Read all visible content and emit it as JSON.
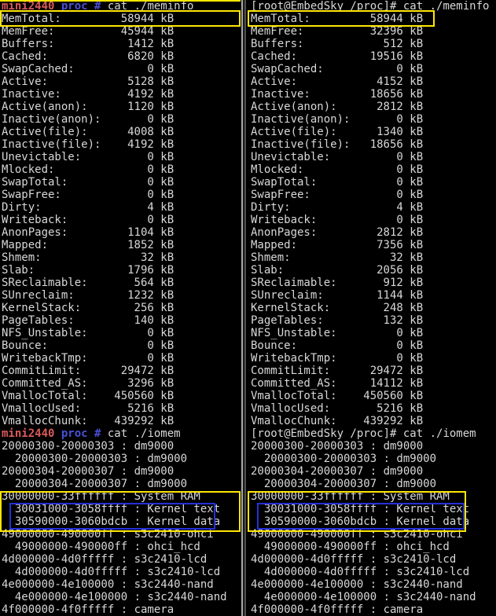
{
  "common": {
    "unit": "kB"
  },
  "colors": {
    "foreground": "#d8d8d8",
    "prompt_host_red": "#da5a5a",
    "prompt_path_blue": "#4c50d9",
    "highlight_yellow": "#ffe600",
    "highlight_blue": "#2531d6"
  },
  "left_terminal": {
    "prompt_host": "mini2440",
    "prompt_path": " proc #",
    "command_meminfo": " cat ./meminfo",
    "command_iomem": " cat ./iomem",
    "meminfo": [
      [
        "MemTotal:",
        "58944"
      ],
      [
        "MemFree:",
        "45944"
      ],
      [
        "Buffers:",
        "1412"
      ],
      [
        "Cached:",
        "6820"
      ],
      [
        "SwapCached:",
        "0"
      ],
      [
        "Active:",
        "5128"
      ],
      [
        "Inactive:",
        "4192"
      ],
      [
        "Active(anon):",
        "1120"
      ],
      [
        "Inactive(anon):",
        "0"
      ],
      [
        "Active(file):",
        "4008"
      ],
      [
        "Inactive(file):",
        "4192"
      ],
      [
        "Unevictable:",
        "0"
      ],
      [
        "Mlocked:",
        "0"
      ],
      [
        "SwapTotal:",
        "0"
      ],
      [
        "SwapFree:",
        "0"
      ],
      [
        "Dirty:",
        "4"
      ],
      [
        "Writeback:",
        "0"
      ],
      [
        "AnonPages:",
        "1104"
      ],
      [
        "Mapped:",
        "1852"
      ],
      [
        "Shmem:",
        "32"
      ],
      [
        "Slab:",
        "1796"
      ],
      [
        "SReclaimable:",
        "564"
      ],
      [
        "SUnreclaim:",
        "1232"
      ],
      [
        "KernelStack:",
        "256"
      ],
      [
        "PageTables:",
        "140"
      ],
      [
        "NFS_Unstable:",
        "0"
      ],
      [
        "Bounce:",
        "0"
      ],
      [
        "WritebackTmp:",
        "0"
      ],
      [
        "CommitLimit:",
        "29472"
      ],
      [
        "Committed_AS:",
        "3296"
      ],
      [
        "VmallocTotal:",
        "450560"
      ],
      [
        "VmallocUsed:",
        "5216"
      ],
      [
        "VmallocChunk:",
        "439292"
      ]
    ],
    "iomem": [
      "20000300-20000303 : dm9000",
      "  20000300-20000303 : dm9000",
      "20000304-20000307 : dm9000",
      "  20000304-20000307 : dm9000",
      "30000000-33ffffff : System RAM",
      "  30031000-3058ffff : Kernel text",
      "  30590000-3060bdcb : Kernel data",
      "49000000-490000ff : s3c2410-ohci",
      "  49000000-490000ff : ohci_hcd",
      "4d000000-4d0fffff : s3c2410-lcd",
      "  4d000000-4d0fffff : s3c2410-lcd",
      "4e000000-4e100000 : s3c2440-nand",
      "  4e000000-4e100000 : s3c2440-nand",
      "4f000000-4f0fffff : camera"
    ]
  },
  "right_terminal": {
    "prompt": "[root@EmbedSky /proc]#",
    "command_meminfo": " cat ./meminfo",
    "command_iomem": " cat ./iomem",
    "meminfo": [
      [
        "MemTotal:",
        "58944"
      ],
      [
        "MemFree:",
        "32396"
      ],
      [
        "Buffers:",
        "512"
      ],
      [
        "Cached:",
        "19516"
      ],
      [
        "SwapCached:",
        "0"
      ],
      [
        "Active:",
        "4152"
      ],
      [
        "Inactive:",
        "18656"
      ],
      [
        "Active(anon):",
        "2812"
      ],
      [
        "Inactive(anon):",
        "0"
      ],
      [
        "Active(file):",
        "1340"
      ],
      [
        "Inactive(file):",
        "18656"
      ],
      [
        "Unevictable:",
        "0"
      ],
      [
        "Mlocked:",
        "0"
      ],
      [
        "SwapTotal:",
        "0"
      ],
      [
        "SwapFree:",
        "0"
      ],
      [
        "Dirty:",
        "4"
      ],
      [
        "Writeback:",
        "0"
      ],
      [
        "AnonPages:",
        "2812"
      ],
      [
        "Mapped:",
        "7356"
      ],
      [
        "Shmem:",
        "32"
      ],
      [
        "Slab:",
        "2056"
      ],
      [
        "SReclaimable:",
        "912"
      ],
      [
        "SUnreclaim:",
        "1144"
      ],
      [
        "KernelStack:",
        "248"
      ],
      [
        "PageTables:",
        "132"
      ],
      [
        "NFS_Unstable:",
        "0"
      ],
      [
        "Bounce:",
        "0"
      ],
      [
        "WritebackTmp:",
        "0"
      ],
      [
        "CommitLimit:",
        "29472"
      ],
      [
        "Committed_AS:",
        "14112"
      ],
      [
        "VmallocTotal:",
        "450560"
      ],
      [
        "VmallocUsed:",
        "5216"
      ],
      [
        "VmallocChunk:",
        "439292"
      ]
    ],
    "iomem": [
      "20000300-20000303 : dm9000",
      "  20000300-20000303 : dm9000",
      "20000304-20000307 : dm9000",
      "  20000304-20000307 : dm9000",
      "30000000-33ffffff : System RAM",
      "  30031000-3058ffff : Kernel text",
      "  30590000-3060bdcb : Kernel data",
      "49000000-490000ff : s3c2410-ohci",
      "  49000000-490000ff : ohci_hcd",
      "4d000000-4d0fffff : s3c2410-lcd",
      "  4d000000-4d0fffff : s3c2410-lcd",
      "4e000000-4e100000 : s3c2440-nand",
      "  4e000000-4e100000 : s3c2440-nand",
      "4f000000-4f0fffff : camera"
    ]
  }
}
